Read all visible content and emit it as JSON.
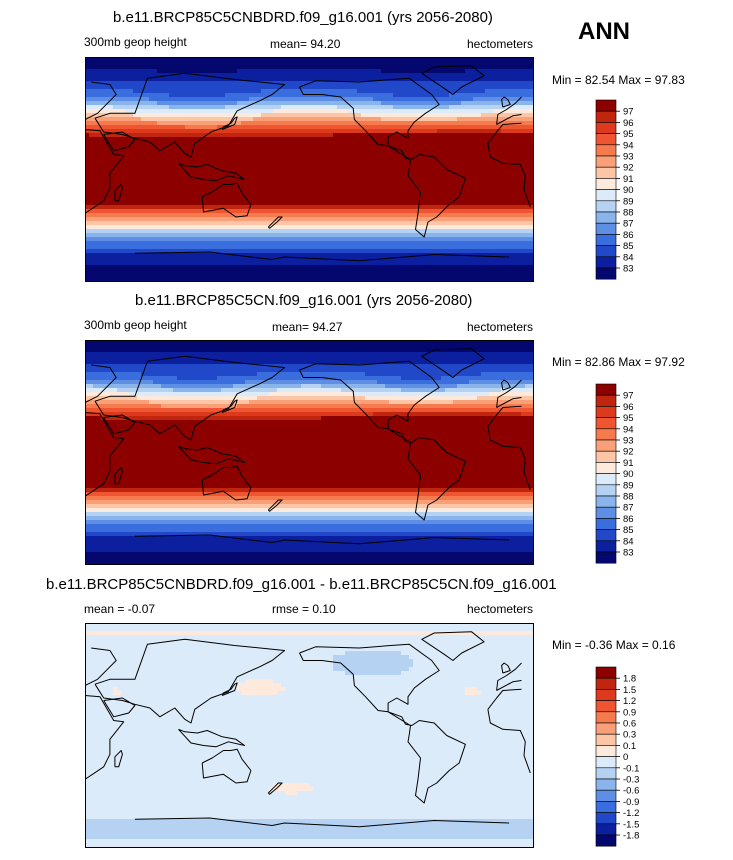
{
  "season": "ANN",
  "chart_data": [
    {
      "type": "heatmap",
      "title": "b.e11.BRCP85C5CNBDRD.f09_g16.001 (yrs 2056-2080)",
      "left_label": "300mb geop height",
      "mean_label": "mean=  94.20",
      "units": "hectometers",
      "minmax_label": "Min =  82.54 Max =  97.83",
      "min": 82.54,
      "max": 97.83,
      "mean": 94.2,
      "levels": [
        "97",
        "96",
        "95",
        "94",
        "93",
        "92",
        "91",
        "90",
        "89",
        "88",
        "87",
        "86",
        "85",
        "84",
        "83"
      ],
      "colors": [
        "#8c0000",
        "#c0250e",
        "#dd3a1d",
        "#ee5530",
        "#f57b4f",
        "#f9a078",
        "#fcc6a6",
        "#feeadc",
        "#dcebfa",
        "#b5d2f3",
        "#8ab4ec",
        "#5f8fe4",
        "#3a6dde",
        "#2048c8",
        "#0c1f9e",
        "#04086e"
      ],
      "field": "z300_a"
    },
    {
      "type": "heatmap",
      "title": "b.e11.BRCP85C5CN.f09_g16.001 (yrs 2056-2080)",
      "left_label": "300mb geop height",
      "mean_label": "mean=  94.27",
      "units": "hectometers",
      "minmax_label": "Min =  82.86 Max =  97.92",
      "min": 82.86,
      "max": 97.92,
      "mean": 94.27,
      "levels": [
        "97",
        "96",
        "95",
        "94",
        "93",
        "92",
        "91",
        "90",
        "89",
        "88",
        "87",
        "86",
        "85",
        "84",
        "83"
      ],
      "colors": [
        "#8c0000",
        "#c0250e",
        "#dd3a1d",
        "#ee5530",
        "#f57b4f",
        "#f9a078",
        "#fcc6a6",
        "#feeadc",
        "#dcebfa",
        "#b5d2f3",
        "#8ab4ec",
        "#5f8fe4",
        "#3a6dde",
        "#2048c8",
        "#0c1f9e",
        "#04086e"
      ],
      "field": "z300_b"
    },
    {
      "type": "heatmap",
      "title": "b.e11.BRCP85C5CNBDRD.f09_g16.001 - b.e11.BRCP85C5CN.f09_g16.001",
      "left_label": "mean =  -0.07",
      "mean_label": "rmse =   0.10",
      "units": "hectometers",
      "minmax_label": "Min =  -0.36 Max =   0.16",
      "min": -0.36,
      "max": 0.16,
      "mean": -0.07,
      "rmse": 0.1,
      "levels": [
        "1.8",
        "1.5",
        "1.2",
        "0.9",
        "0.6",
        "0.3",
        "0.1",
        "0",
        "-0.1",
        "-0.3",
        "-0.6",
        "-0.9",
        "-1.2",
        "-1.5",
        "-1.8"
      ],
      "colors": [
        "#8c0000",
        "#c0250e",
        "#dd3a1d",
        "#ee5530",
        "#f57b4f",
        "#f9a078",
        "#fcc6a6",
        "#feeadc",
        "#dcebfa",
        "#b5d2f3",
        "#8ab4ec",
        "#5f8fe4",
        "#3a6dde",
        "#2048c8",
        "#0c1f9e",
        "#04086e"
      ],
      "field": "diff"
    }
  ]
}
